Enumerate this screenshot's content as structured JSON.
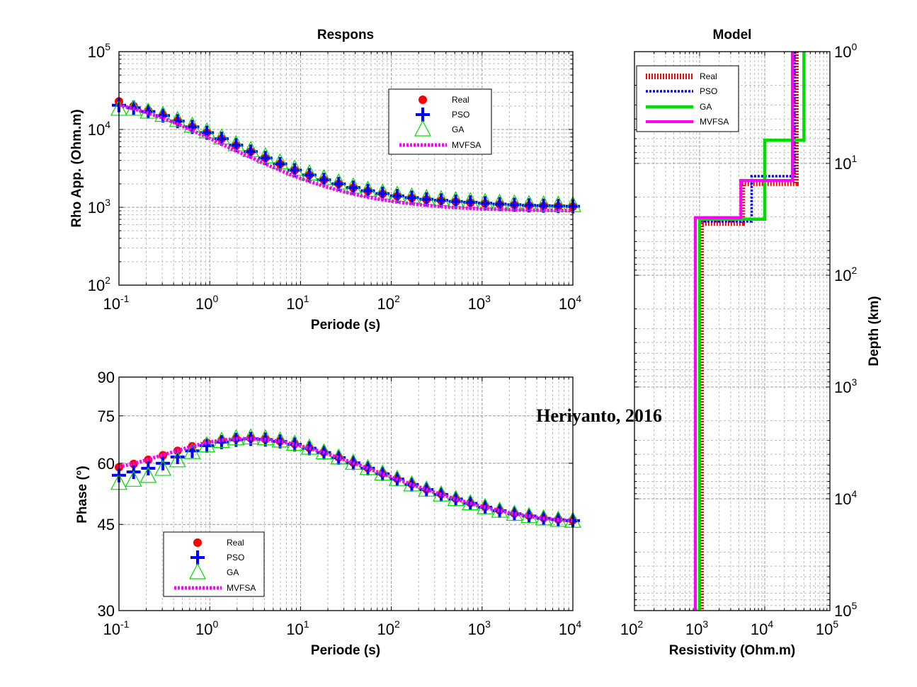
{
  "watermark": "Heriyanto, 2016",
  "colors": {
    "Real": "#ff0000",
    "PSO": "#0000ff",
    "GA": "#00dd00",
    "MVFSA": "#ff00ff"
  },
  "chart_data": [
    {
      "id": "rho",
      "type": "scatter",
      "title": "Respons",
      "xlabel": "Periode (s)",
      "ylabel": "Rho App. (Ohm.m)",
      "xscale": "log",
      "yscale": "log",
      "xlim": [
        0.1,
        10000
      ],
      "ylim": [
        100,
        100000
      ],
      "xticks": [
        {
          "base": "10",
          "exp": "-1"
        },
        {
          "base": "10",
          "exp": "0"
        },
        {
          "base": "10",
          "exp": "1"
        },
        {
          "base": "10",
          "exp": "2"
        },
        {
          "base": "10",
          "exp": "3"
        },
        {
          "base": "10",
          "exp": "4"
        }
      ],
      "yticks": [
        {
          "base": "10",
          "exp": "2"
        },
        {
          "base": "10",
          "exp": "3"
        },
        {
          "base": "10",
          "exp": "4"
        },
        {
          "base": "10",
          "exp": "5"
        }
      ],
      "grid": true,
      "legend_position": "top-right",
      "legend": [
        "Real",
        "PSO",
        "GA",
        "MVFSA"
      ],
      "x": [
        0.1,
        0.145,
        0.21,
        0.305,
        0.442,
        0.641,
        0.929,
        1.35,
        1.95,
        2.83,
        4.1,
        5.95,
        8.62,
        12.5,
        18.1,
        26.3,
        38.1,
        55.2,
        80.1,
        116,
        168,
        244,
        354,
        513,
        743,
        1080,
        1560,
        2270,
        3290,
        4760,
        6900,
        10000
      ],
      "series": [
        {
          "name": "Real",
          "marker": "circle",
          "values": [
            22900,
            20000,
            17500,
            15400,
            12900,
            10800,
            9100,
            7600,
            6200,
            5200,
            4300,
            3600,
            3000,
            2600,
            2250,
            2000,
            1780,
            1620,
            1490,
            1390,
            1320,
            1260,
            1220,
            1180,
            1150,
            1120,
            1090,
            1070,
            1050,
            1040,
            1030,
            1020
          ]
        },
        {
          "name": "PSO",
          "marker": "plus",
          "values": [
            20500,
            19000,
            17000,
            15100,
            12800,
            10800,
            9100,
            7600,
            6300,
            5200,
            4300,
            3600,
            3000,
            2600,
            2250,
            2000,
            1790,
            1630,
            1500,
            1400,
            1330,
            1270,
            1230,
            1190,
            1160,
            1130,
            1100,
            1080,
            1060,
            1050,
            1040,
            1030
          ]
        },
        {
          "name": "GA",
          "marker": "triangle",
          "values": [
            18000,
            18000,
            16500,
            15000,
            12900,
            10900,
            9200,
            7700,
            6300,
            5300,
            4400,
            3700,
            3050,
            2650,
            2300,
            2030,
            1800,
            1640,
            1510,
            1410,
            1340,
            1280,
            1240,
            1200,
            1170,
            1140,
            1110,
            1090,
            1070,
            1060,
            1050,
            1040
          ]
        },
        {
          "name": "MVFSA",
          "marker": "dotted-line",
          "values": [
            20500,
            18500,
            16200,
            14000,
            11800,
            9700,
            8000,
            6500,
            5300,
            4400,
            3600,
            3000,
            2500,
            2150,
            1870,
            1650,
            1480,
            1350,
            1250,
            1170,
            1110,
            1060,
            1020,
            990,
            970,
            950,
            940,
            930,
            920,
            915,
            910,
            905
          ]
        }
      ]
    },
    {
      "id": "phase",
      "type": "scatter",
      "title": "",
      "xlabel": "Periode (s)",
      "ylabel": "Phase (°)",
      "xscale": "log",
      "yscale": "log",
      "xlim": [
        0.1,
        10000
      ],
      "ylim": [
        30,
        90
      ],
      "xticks": [
        {
          "base": "10",
          "exp": "-1"
        },
        {
          "base": "10",
          "exp": "0"
        },
        {
          "base": "10",
          "exp": "1"
        },
        {
          "base": "10",
          "exp": "2"
        },
        {
          "base": "10",
          "exp": "3"
        },
        {
          "base": "10",
          "exp": "4"
        }
      ],
      "yticks": [
        "30",
        "45",
        "60",
        "75",
        "90"
      ],
      "grid": true,
      "legend_position": "bottom-left",
      "legend": [
        "Real",
        "PSO",
        "GA",
        "MVFSA"
      ],
      "x": [
        0.1,
        0.145,
        0.21,
        0.305,
        0.442,
        0.641,
        0.929,
        1.35,
        1.95,
        2.83,
        4.1,
        5.95,
        8.62,
        12.5,
        18.1,
        26.3,
        38.1,
        55.2,
        80.1,
        116,
        168,
        244,
        354,
        513,
        743,
        1080,
        1560,
        2270,
        3290,
        4760,
        6900,
        10000
      ],
      "series": [
        {
          "name": "Real",
          "marker": "circle",
          "values": [
            58.9,
            59.8,
            61.0,
            62.3,
            63.6,
            65.0,
            66.1,
            66.9,
            67.4,
            67.5,
            67.2,
            66.6,
            65.7,
            64.5,
            63.2,
            61.7,
            60.2,
            58.7,
            57.2,
            55.8,
            54.4,
            53.1,
            51.9,
            50.8,
            49.8,
            48.9,
            48.1,
            47.4,
            46.9,
            46.4,
            46.1,
            45.9
          ]
        },
        {
          "name": "PSO",
          "marker": "plus",
          "values": [
            56.7,
            57.6,
            58.6,
            60.0,
            61.8,
            63.6,
            65.2,
            66.3,
            67.0,
            67.3,
            67.1,
            66.5,
            65.6,
            64.4,
            63.1,
            61.6,
            60.1,
            58.6,
            57.1,
            55.7,
            54.3,
            53.0,
            51.8,
            50.7,
            49.7,
            48.8,
            48.0,
            47.3,
            46.8,
            46.3,
            46.0,
            45.8
          ]
        },
        {
          "name": "GA",
          "marker": "triangle",
          "values": [
            54.5,
            55.3,
            56.3,
            58.2,
            60.6,
            63.0,
            65.0,
            66.4,
            67.2,
            67.5,
            67.2,
            66.5,
            65.5,
            64.3,
            62.9,
            61.4,
            59.9,
            58.4,
            56.9,
            55.5,
            54.1,
            52.8,
            51.6,
            50.5,
            49.5,
            48.6,
            47.8,
            47.1,
            46.6,
            46.1,
            45.8,
            45.6
          ]
        },
        {
          "name": "MVFSA",
          "marker": "dotted-line",
          "values": [
            59.0,
            59.9,
            61.1,
            62.4,
            63.7,
            65.0,
            66.1,
            66.9,
            67.3,
            67.4,
            67.1,
            66.5,
            65.6,
            64.4,
            63.1,
            61.6,
            60.1,
            58.6,
            57.1,
            55.7,
            54.3,
            53.0,
            51.8,
            50.7,
            49.7,
            48.8,
            48.0,
            47.3,
            46.8,
            46.3,
            46.0,
            45.8
          ]
        }
      ]
    },
    {
      "id": "model",
      "type": "line",
      "title": "Model",
      "xlabel": "Resistivity (Ohm.m)",
      "ylabel": "Depth (km)",
      "xscale": "log",
      "yscale": "log",
      "y_reversed": true,
      "xlim": [
        100,
        100000
      ],
      "ylim": [
        1,
        100000
      ],
      "xticks": [
        {
          "base": "10",
          "exp": "2"
        },
        {
          "base": "10",
          "exp": "3"
        },
        {
          "base": "10",
          "exp": "4"
        },
        {
          "base": "10",
          "exp": "5"
        }
      ],
      "yticks": [
        {
          "base": "10",
          "exp": "0"
        },
        {
          "base": "10",
          "exp": "1"
        },
        {
          "base": "10",
          "exp": "2"
        },
        {
          "base": "10",
          "exp": "3"
        },
        {
          "base": "10",
          "exp": "4"
        },
        {
          "base": "10",
          "exp": "5"
        }
      ],
      "grid": true,
      "legend_position": "top-left",
      "legend": [
        "Real",
        "PSO",
        "GA",
        "MVFSA"
      ],
      "series": [
        {
          "name": "Real",
          "style": "thick-dashed",
          "resistivity": [
            30000,
            4500,
            1050
          ],
          "layer_bottom_depth": [
            15,
            34
          ]
        },
        {
          "name": "PSO",
          "style": "dotted",
          "resistivity": [
            28500,
            6300,
            1000
          ],
          "layer_bottom_depth": [
            13,
            33
          ]
        },
        {
          "name": "GA",
          "style": "solid",
          "resistivity": [
            40000,
            10000,
            1000
          ],
          "layer_bottom_depth": [
            6.2,
            31.5
          ]
        },
        {
          "name": "MVFSA",
          "style": "solid",
          "resistivity": [
            26500,
            4300,
            860
          ],
          "layer_bottom_depth": [
            14.2,
            30.5
          ]
        }
      ]
    }
  ]
}
